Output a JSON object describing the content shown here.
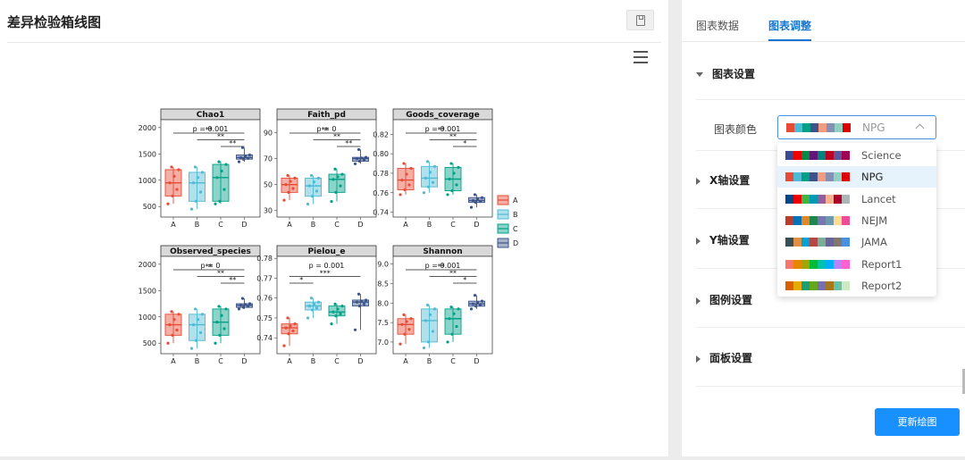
{
  "page": {
    "title": "差异检验箱线图"
  },
  "tabs": [
    {
      "label": "图表数据"
    },
    {
      "label": "图表调整"
    }
  ],
  "settings": {
    "sections": [
      {
        "label": "图表设置"
      },
      {
        "label": "X轴设置"
      },
      {
        "label": "Y轴设置"
      },
      {
        "label": "图例设置"
      },
      {
        "label": "面板设置"
      }
    ],
    "color_label": "图表颜色",
    "selected": "NPG",
    "options": [
      {
        "name": "Science",
        "colors": [
          "#3b4992",
          "#ee0000",
          "#008b45",
          "#631879",
          "#008280",
          "#bb0021",
          "#5f559b",
          "#a20056"
        ]
      },
      {
        "name": "NPG",
        "colors": [
          "#e64b35",
          "#4dbbd5",
          "#00a087",
          "#3c5488",
          "#f39b7f",
          "#8491b4",
          "#91d1c2",
          "#dc0000"
        ]
      },
      {
        "name": "Lancet",
        "colors": [
          "#00468b",
          "#ed0000",
          "#42b540",
          "#0099b4",
          "#925e9f",
          "#fdaf91",
          "#ad002a",
          "#adb6b6"
        ]
      },
      {
        "name": "NEJM",
        "colors": [
          "#bc3c29",
          "#0072b5",
          "#e18727",
          "#20854e",
          "#7876b1",
          "#6f99ad",
          "#ffdc91",
          "#ee4c97"
        ]
      },
      {
        "name": "JAMA",
        "colors": [
          "#374e55",
          "#df8f44",
          "#00a1d5",
          "#b24745",
          "#79af97",
          "#6a6599",
          "#80796b",
          "#4a90e2"
        ]
      },
      {
        "name": "Report1",
        "colors": [
          "#f8766d",
          "#e58700",
          "#a3a500",
          "#00ba38",
          "#00c0af",
          "#00b0f6",
          "#b983ff",
          "#fd61d1"
        ]
      },
      {
        "name": "Report2",
        "colors": [
          "#d95f02",
          "#e6ab02",
          "#1b9e77",
          "#66a61e",
          "#7570b3",
          "#a6761d",
          "#66c2a5",
          "#ccebc5"
        ]
      }
    ],
    "update_button": "更新绘图"
  },
  "chart_data": {
    "type": "box",
    "groups": [
      "A",
      "B",
      "C",
      "D"
    ],
    "colors": [
      "#e64b35",
      "#4dbbd5",
      "#00a087",
      "#3c5488"
    ],
    "legend": {
      "entries": [
        "A",
        "B",
        "C",
        "D"
      ],
      "placement": "right"
    },
    "panels": [
      {
        "title": "Chao1",
        "pvalue": "p = 0.001",
        "yticks": [
          "2000",
          "1500",
          "1000",
          "500"
        ],
        "ylim": [
          300,
          2150
        ],
        "yvals": [
          2000,
          1500,
          1000,
          500
        ],
        "boxes": [
          {
            "q1": 700,
            "med": 950,
            "q3": 1200,
            "lo": 550,
            "hi": 1250
          },
          {
            "q1": 600,
            "med": 950,
            "q3": 1150,
            "lo": 450,
            "hi": 1250
          },
          {
            "q1": 600,
            "med": 1050,
            "q3": 1300,
            "lo": 550,
            "hi": 1350
          },
          {
            "q1": 1400,
            "med": 1430,
            "q3": 1480,
            "lo": 1350,
            "hi": 1620
          }
        ],
        "sig": [
          {
            "from": 2,
            "to": 3,
            "label": "**"
          },
          {
            "from": 1,
            "to": 3,
            "label": "**"
          },
          {
            "from": 0,
            "to": 3,
            "label": "**"
          }
        ]
      },
      {
        "title": "Faith_pd",
        "pvalue": "p = 0",
        "yticks": [
          "90",
          "70",
          "50",
          "30"
        ],
        "ylim": [
          25,
          100
        ],
        "yvals": [
          90,
          70,
          50,
          30
        ],
        "boxes": [
          {
            "q1": 44,
            "med": 50,
            "q3": 55,
            "lo": 38,
            "hi": 57
          },
          {
            "q1": 41,
            "med": 49,
            "q3": 55,
            "lo": 35,
            "hi": 57
          },
          {
            "q1": 44,
            "med": 54,
            "q3": 58,
            "lo": 37,
            "hi": 62
          },
          {
            "q1": 68,
            "med": 70,
            "q3": 71,
            "lo": 66,
            "hi": 77
          }
        ],
        "sig": [
          {
            "from": 2,
            "to": 3,
            "label": "**"
          },
          {
            "from": 1,
            "to": 3,
            "label": "**"
          },
          {
            "from": 0,
            "to": 3,
            "label": "**"
          }
        ]
      },
      {
        "title": "Goods_coverage",
        "pvalue": "p = 0.001",
        "yticks": [
          "0.82",
          "0.80",
          "0.78",
          "0.76",
          "0.74"
        ],
        "ylim": [
          0.735,
          0.835
        ],
        "yvals": [
          0.82,
          0.8,
          0.78,
          0.76,
          0.74
        ],
        "boxes": [
          {
            "q1": 0.763,
            "med": 0.773,
            "q3": 0.785,
            "lo": 0.758,
            "hi": 0.79
          },
          {
            "q1": 0.766,
            "med": 0.775,
            "q3": 0.787,
            "lo": 0.76,
            "hi": 0.792
          },
          {
            "q1": 0.762,
            "med": 0.774,
            "q3": 0.786,
            "lo": 0.758,
            "hi": 0.79
          },
          {
            "q1": 0.75,
            "med": 0.752,
            "q3": 0.755,
            "lo": 0.745,
            "hi": 0.758
          }
        ],
        "sig": [
          {
            "from": 2,
            "to": 3,
            "label": "*"
          },
          {
            "from": 1,
            "to": 3,
            "label": "**"
          },
          {
            "from": 0,
            "to": 3,
            "label": "**"
          }
        ]
      },
      {
        "title": "Observed_species",
        "pvalue": "p = 0",
        "yticks": [
          "2000",
          "1500",
          "1000",
          "500"
        ],
        "ylim": [
          300,
          2150
        ],
        "yvals": [
          2000,
          1500,
          1000,
          500
        ],
        "boxes": [
          {
            "q1": 650,
            "med": 850,
            "q3": 1050,
            "lo": 500,
            "hi": 1100
          },
          {
            "q1": 550,
            "med": 850,
            "q3": 1050,
            "lo": 400,
            "hi": 1150
          },
          {
            "q1": 650,
            "med": 900,
            "q3": 1150,
            "lo": 500,
            "hi": 1200
          },
          {
            "q1": 1180,
            "med": 1220,
            "q3": 1250,
            "lo": 1150,
            "hi": 1350
          }
        ],
        "sig": [
          {
            "from": 2,
            "to": 3,
            "label": "**"
          },
          {
            "from": 1,
            "to": 3,
            "label": "**"
          },
          {
            "from": 0,
            "to": 3,
            "label": "**"
          }
        ]
      },
      {
        "title": "Pielou_e",
        "pvalue": "p = 0.001",
        "yticks": [
          "0.78",
          "0.77",
          "0.76",
          "0.75",
          "0.74"
        ],
        "ylim": [
          0.732,
          0.781
        ],
        "yvals": [
          0.78,
          0.77,
          0.76,
          0.75,
          0.74
        ],
        "boxes": [
          {
            "q1": 0.742,
            "med": 0.745,
            "q3": 0.747,
            "lo": 0.736,
            "hi": 0.75
          },
          {
            "q1": 0.754,
            "med": 0.756,
            "q3": 0.758,
            "lo": 0.75,
            "hi": 0.76
          },
          {
            "q1": 0.751,
            "med": 0.753,
            "q3": 0.756,
            "lo": 0.747,
            "hi": 0.757
          },
          {
            "q1": 0.756,
            "med": 0.758,
            "q3": 0.759,
            "lo": 0.744,
            "hi": 0.762
          }
        ],
        "sig": [
          {
            "from": 0,
            "to": 1,
            "label": "*"
          },
          {
            "from": 0,
            "to": 3,
            "label": "***"
          }
        ]
      },
      {
        "title": "Shannon",
        "pvalue": "p = 0.001",
        "yticks": [
          "9.0",
          "8.5",
          "8.0",
          "7.5",
          "7.0"
        ],
        "ylim": [
          6.7,
          9.2
        ],
        "yvals": [
          9.0,
          8.5,
          8.0,
          7.5,
          7.0
        ],
        "boxes": [
          {
            "q1": 7.2,
            "med": 7.45,
            "q3": 7.6,
            "lo": 6.95,
            "hi": 7.7
          },
          {
            "q1": 7.0,
            "med": 7.55,
            "q3": 7.85,
            "lo": 6.85,
            "hi": 7.95
          },
          {
            "q1": 7.2,
            "med": 7.6,
            "q3": 7.85,
            "lo": 7.0,
            "hi": 7.9
          },
          {
            "q1": 7.92,
            "med": 7.98,
            "q3": 8.05,
            "lo": 7.85,
            "hi": 8.2
          }
        ],
        "sig": [
          {
            "from": 2,
            "to": 3,
            "label": "*"
          },
          {
            "from": 1,
            "to": 3,
            "label": "**"
          },
          {
            "from": 0,
            "to": 3,
            "label": "**"
          }
        ]
      }
    ]
  }
}
